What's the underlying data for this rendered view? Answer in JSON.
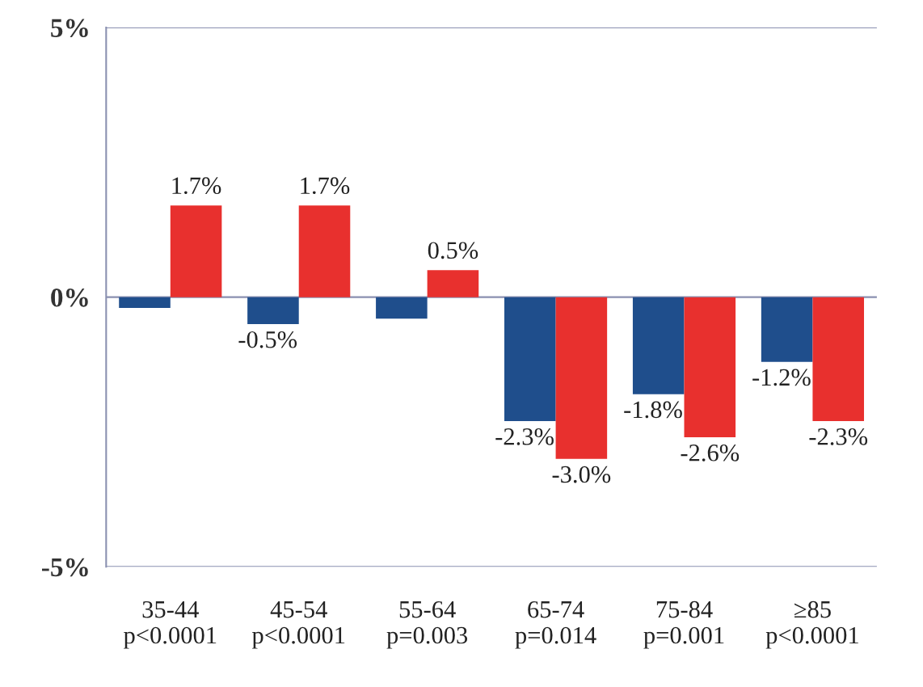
{
  "chart_data": {
    "type": "bar",
    "categories": [
      "35-44\np<0.0001",
      "45-54\np<0.0001",
      "55-64\np=0.003",
      "65-74\np=0.014",
      "75-84\np=0.001",
      "≥85\np<0.0001"
    ],
    "series": [
      {
        "color": "#1f4e8c",
        "values": [
          -0.2,
          -0.5,
          -0.4,
          -2.3,
          -1.8,
          -1.2
        ],
        "value_labels": [
          null,
          "-0.5%",
          null,
          "-2.3%",
          "-1.8%",
          "-1.2%"
        ]
      },
      {
        "color": "#e8302e",
        "values": [
          1.7,
          1.7,
          0.5,
          -3.0,
          -2.6,
          -2.3
        ],
        "value_labels": [
          "1.7%",
          "1.7%",
          "0.5%",
          "-3.0%",
          "-2.6%",
          "-2.3%"
        ]
      }
    ],
    "ylim": [
      -5,
      5
    ],
    "yticks": [
      {
        "value": -5,
        "label": "-5%"
      },
      {
        "value": 0,
        "label": "0%"
      },
      {
        "value": 5,
        "label": "5%"
      }
    ],
    "grid": "y"
  }
}
